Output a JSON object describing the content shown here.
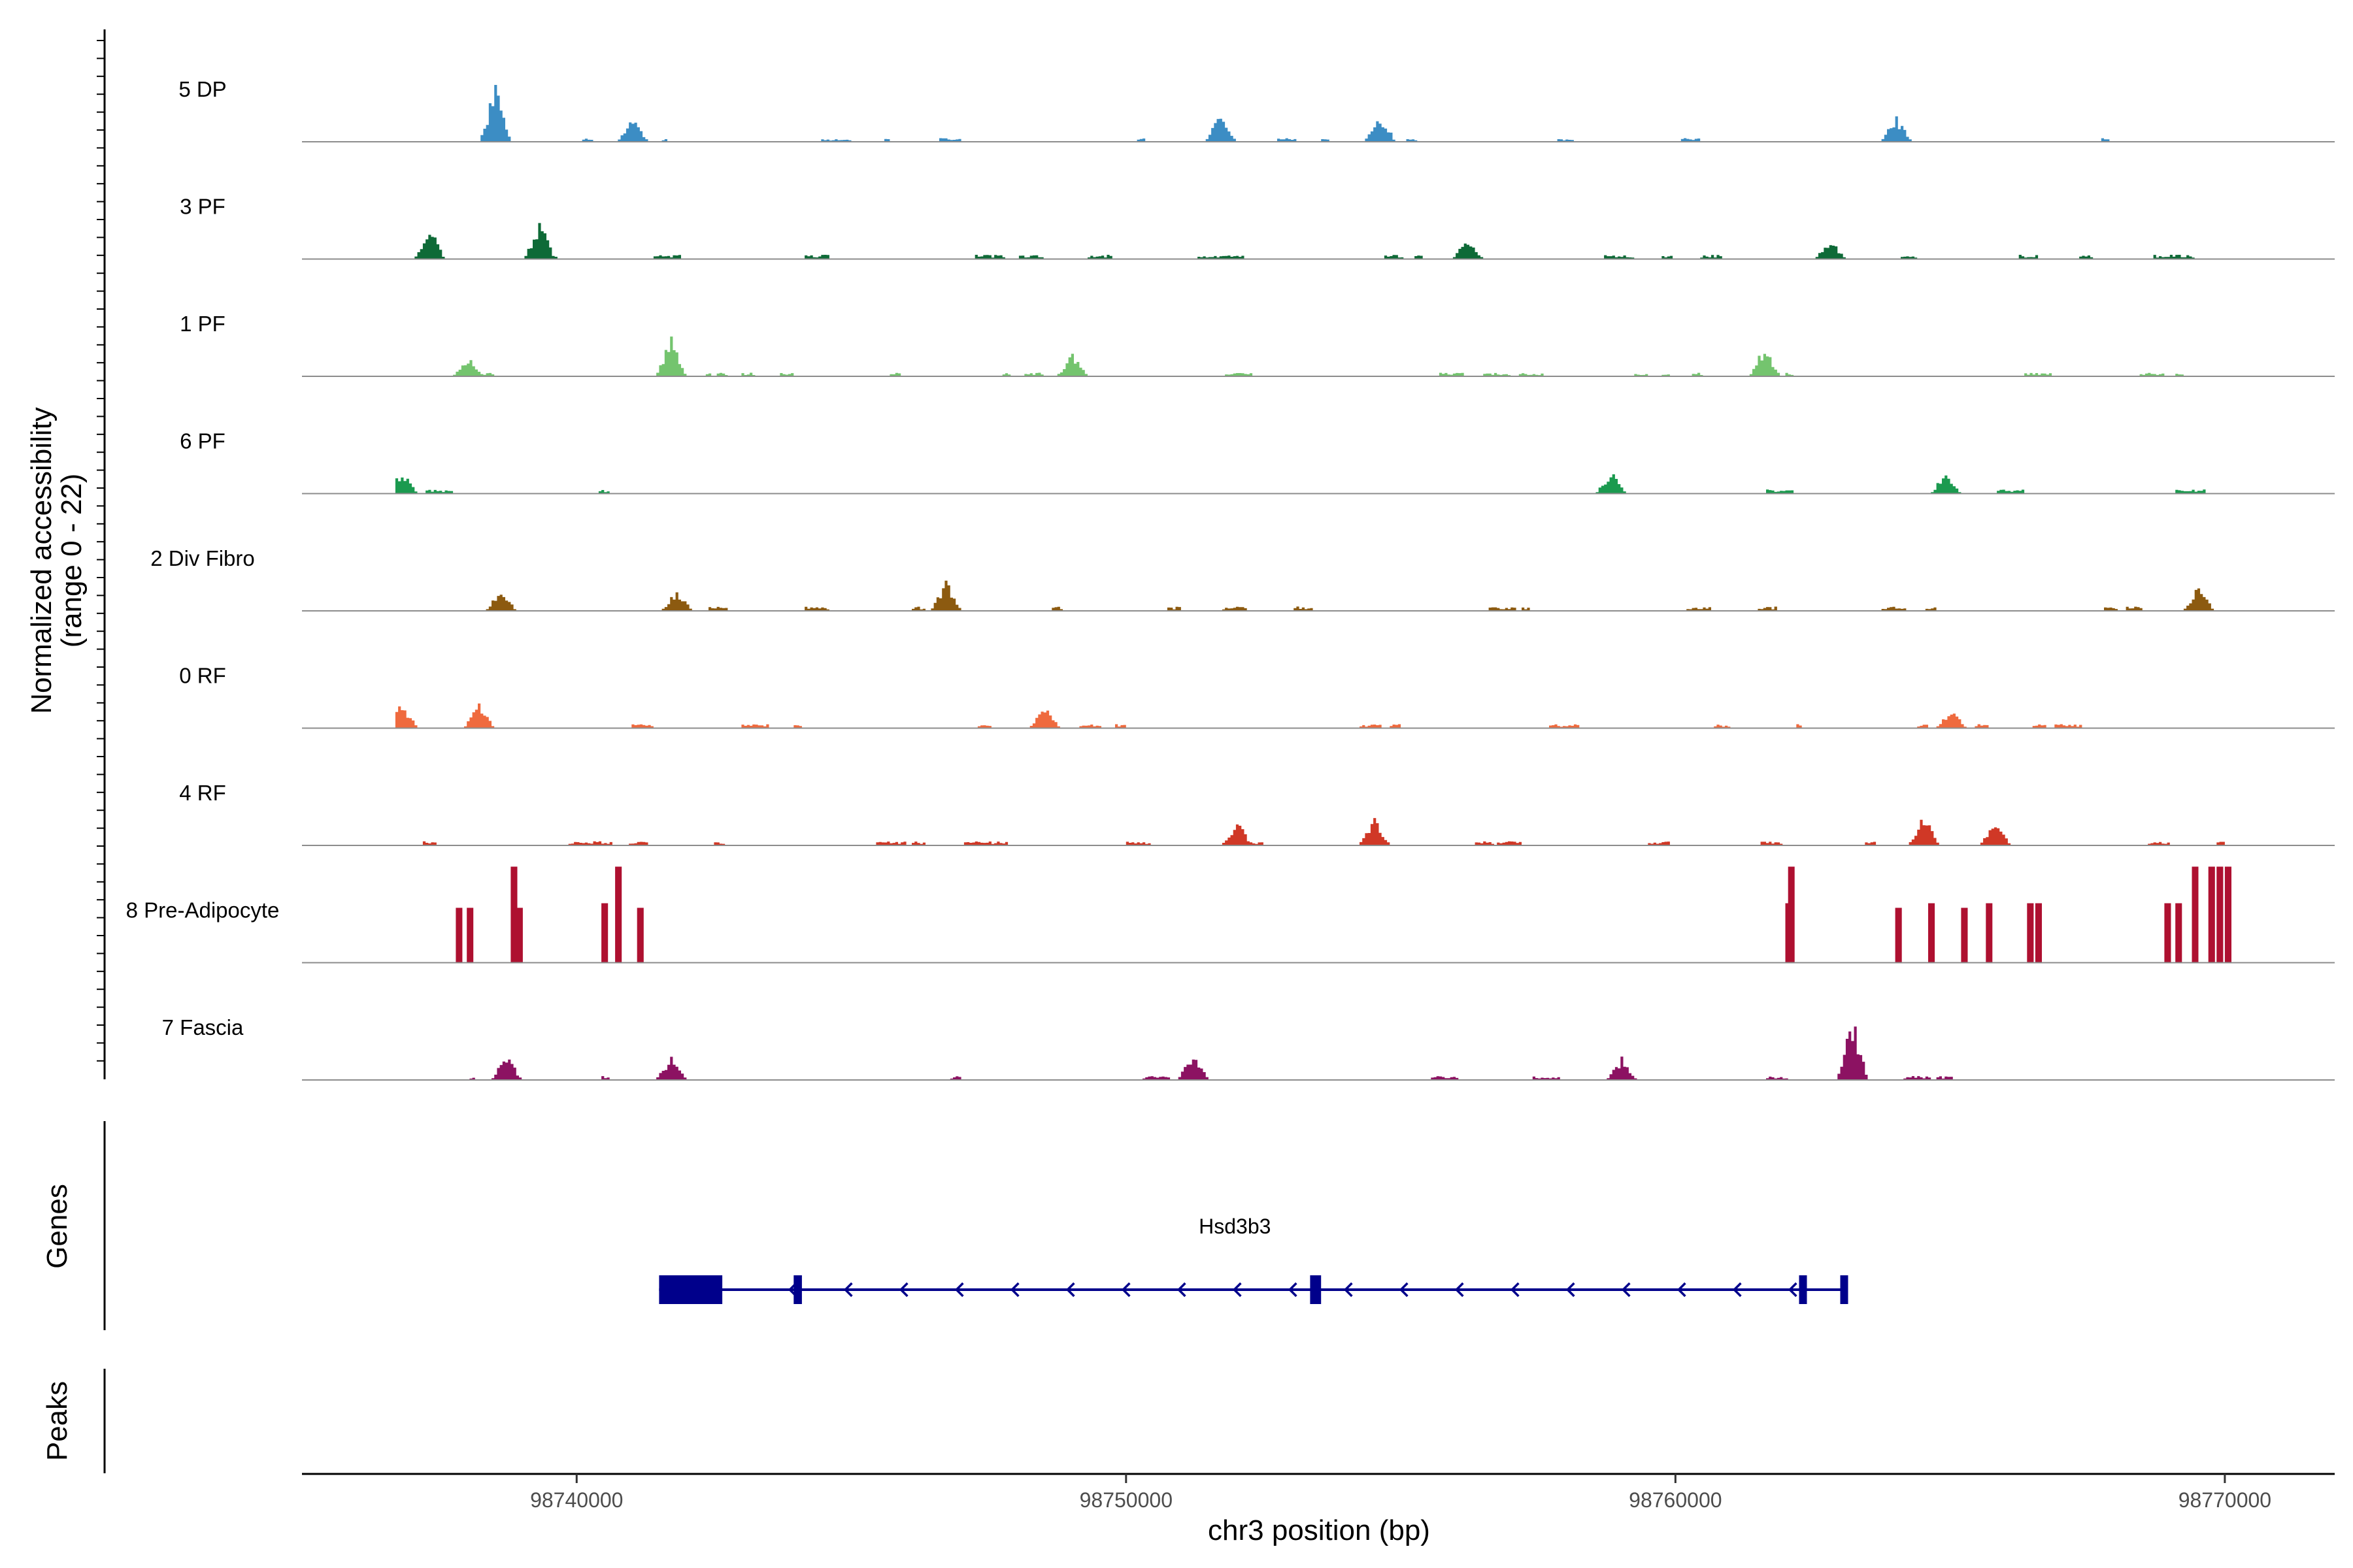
{
  "chart_data": {
    "type": "area",
    "title": "",
    "coverage_y_axis_label_line1": "Normalized accessibility",
    "coverage_y_axis_label_line2": "(range 0 - 22)",
    "y_range": [
      0,
      22
    ],
    "genes_label": "Genes",
    "peaks_label": "Peaks",
    "xlabel": "chr3 position (bp)",
    "xlim": [
      98735000,
      98772000
    ],
    "x_ticks": [
      98740000,
      98750000,
      98760000,
      98770000
    ],
    "x_tick_labels": [
      "98740000",
      "98750000",
      "98760000",
      "98770000"
    ],
    "region": [
      98736700,
      98770000
    ],
    "tracks": [
      {
        "name": "5 DP",
        "color": "#3C8DC4",
        "seed": 11,
        "density": 0.34,
        "scale": 0.22,
        "hotspots": [
          [
            98738500,
            7
          ],
          [
            98741000,
            3
          ],
          [
            98751700,
            3.5
          ],
          [
            98754600,
            3.5
          ],
          [
            98764000,
            3
          ]
        ]
      },
      {
        "name": "3 PF",
        "color": "#0E6A37",
        "seed": 23,
        "density": 0.36,
        "scale": 0.26,
        "hotspots": [
          [
            98737300,
            4
          ],
          [
            98739300,
            4.5
          ],
          [
            98756200,
            2.6
          ],
          [
            98762800,
            2.4
          ]
        ]
      },
      {
        "name": "1 PF",
        "color": "#74C46E",
        "seed": 37,
        "density": 0.42,
        "scale": 0.22,
        "hotspots": [
          [
            98741700,
            4.5
          ],
          [
            98738000,
            2.5
          ],
          [
            98749000,
            2.6
          ],
          [
            98761600,
            3.8
          ]
        ]
      },
      {
        "name": "6 PF",
        "color": "#1B9A4F",
        "seed": 41,
        "density": 0.2,
        "scale": 0.25,
        "hotspots": [
          [
            98736800,
            2.6
          ],
          [
            98758800,
            2.6
          ],
          [
            98764900,
            2.6
          ]
        ]
      },
      {
        "name": "2 Div Fibro",
        "color": "#8C5A10",
        "seed": 53,
        "density": 0.36,
        "scale": 0.26,
        "hotspots": [
          [
            98738600,
            3
          ],
          [
            98741800,
            2.5
          ],
          [
            98746700,
            3.6
          ],
          [
            98769500,
            3.2
          ]
        ]
      },
      {
        "name": "0 RF",
        "color": "#EF6A3E",
        "seed": 61,
        "density": 0.36,
        "scale": 0.24,
        "hotspots": [
          [
            98736800,
            3
          ],
          [
            98738200,
            2.8
          ],
          [
            98748500,
            2.8
          ],
          [
            98765000,
            2.2
          ]
        ]
      },
      {
        "name": "4 RF",
        "color": "#D03826",
        "seed": 71,
        "density": 0.36,
        "scale": 0.25,
        "hotspots": [
          [
            98754500,
            3.4
          ],
          [
            98765800,
            3
          ],
          [
            98764500,
            3.6
          ],
          [
            98752000,
            2.8
          ]
        ]
      },
      {
        "name": "8 Pre-Adipocyte",
        "color": "#AE1030",
        "seed": 83,
        "density": 0.0,
        "scale": 0.0,
        "spikes": true,
        "hotspots": []
      },
      {
        "name": "7 Fascia",
        "color": "#8C1262",
        "seed": 97,
        "density": 0.34,
        "scale": 0.24,
        "hotspots": [
          [
            98763200,
            7.2
          ],
          [
            98738700,
            3
          ],
          [
            98741700,
            2.8
          ],
          [
            98751200,
            3.2
          ],
          [
            98759000,
            2.6
          ]
        ]
      }
    ],
    "spike_track": [
      [
        98737800,
        6
      ],
      [
        98738000,
        6
      ],
      [
        98738800,
        10.5
      ],
      [
        98738900,
        6
      ],
      [
        98740450,
        6.5
      ],
      [
        98740700,
        10.5
      ],
      [
        98741100,
        6
      ],
      [
        98762000,
        6.5
      ],
      [
        98762050,
        10.5
      ],
      [
        98764000,
        6
      ],
      [
        98764600,
        6.5
      ],
      [
        98765200,
        6
      ],
      [
        98765650,
        6.5
      ],
      [
        98766400,
        6.5
      ],
      [
        98766550,
        6.5
      ],
      [
        98768900,
        6.5
      ],
      [
        98769100,
        6.5
      ],
      [
        98769400,
        10.5
      ],
      [
        98769700,
        10.5
      ],
      [
        98769850,
        10.5
      ],
      [
        98770000,
        10.5
      ]
    ],
    "gene": {
      "name": "Hsd3b3",
      "strand": "-",
      "color": "#00008B",
      "exons": [
        [
          98741500,
          98742650
        ],
        [
          98743950,
          98744100
        ],
        [
          98753350,
          98753550
        ],
        [
          98762250,
          98762350
        ],
        [
          98763000,
          98763080
        ]
      ]
    }
  }
}
